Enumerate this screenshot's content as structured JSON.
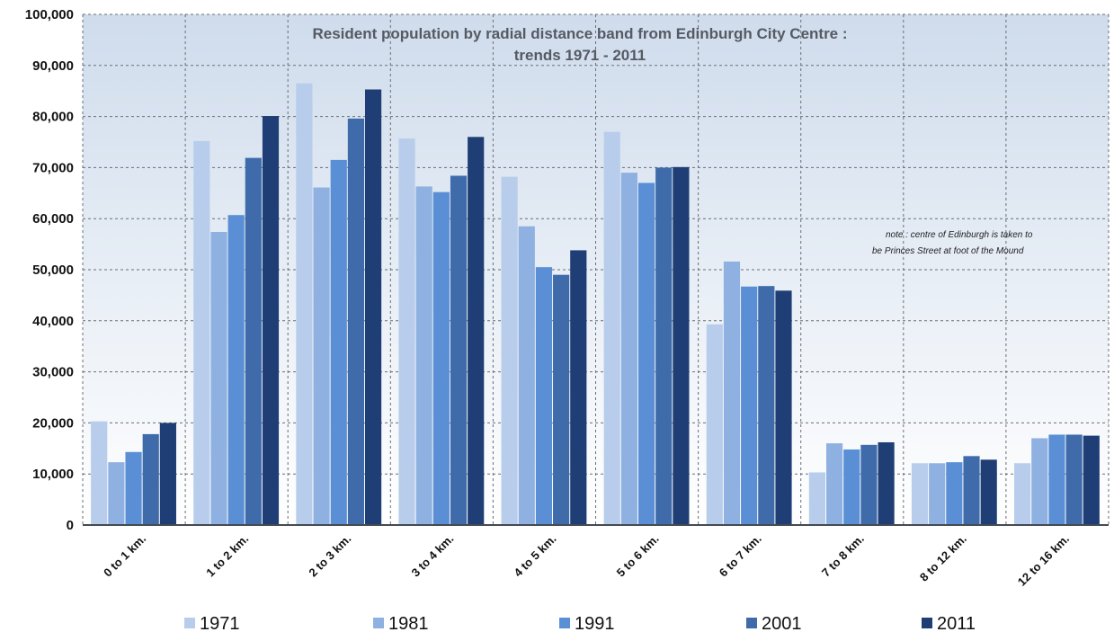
{
  "chart_data": {
    "type": "bar",
    "title": "Resident population by radial distance band from Edinburgh City Centre  :",
    "subtitle": "trends 1971 - 2011",
    "note_lines": [
      "note : centre of Edinburgh is taken to",
      "be Princes Street at foot of the Mound"
    ],
    "categories": [
      "0 to 1 km.",
      "1 to 2 km.",
      "2 to 3 km.",
      "3 to 4 km.",
      "4 to 5 km.",
      "5 to 6 km.",
      "6 to 7 km.",
      "7 to 8 km.",
      "8 to 12 km.",
      "12 to 16 km."
    ],
    "series": [
      {
        "name": "1971",
        "color": "#b7cdeb",
        "values": [
          20300,
          75200,
          86500,
          75700,
          68200,
          77000,
          39300,
          10300,
          12100,
          12100
        ]
      },
      {
        "name": "1981",
        "color": "#8fb1e2",
        "values": [
          12300,
          57400,
          66100,
          66300,
          58500,
          69000,
          51600,
          16000,
          12100,
          17000
        ]
      },
      {
        "name": "1991",
        "color": "#5a8fd5",
        "values": [
          14300,
          60700,
          71500,
          65200,
          50500,
          67000,
          46700,
          14800,
          12300,
          17700
        ]
      },
      {
        "name": "2001",
        "color": "#3f6bab",
        "values": [
          17800,
          71900,
          79600,
          68400,
          49000,
          70000,
          46800,
          15700,
          13500,
          17700
        ]
      },
      {
        "name": "2011",
        "color": "#1f3e75",
        "values": [
          20000,
          80100,
          85300,
          76000,
          53800,
          70100,
          45900,
          16200,
          12800,
          17500
        ]
      }
    ],
    "yticks": [
      "0",
      "10,000",
      "20,000",
      "30,000",
      "40,000",
      "50,000",
      "60,000",
      "70,000",
      "80,000",
      "90,000",
      "100,000"
    ],
    "ylim": [
      0,
      100000
    ],
    "xlabel": "",
    "ylabel": "",
    "grid": true,
    "legend_position": "bottom",
    "background_gradient": [
      "#cfdcec",
      "#ffffff"
    ]
  }
}
